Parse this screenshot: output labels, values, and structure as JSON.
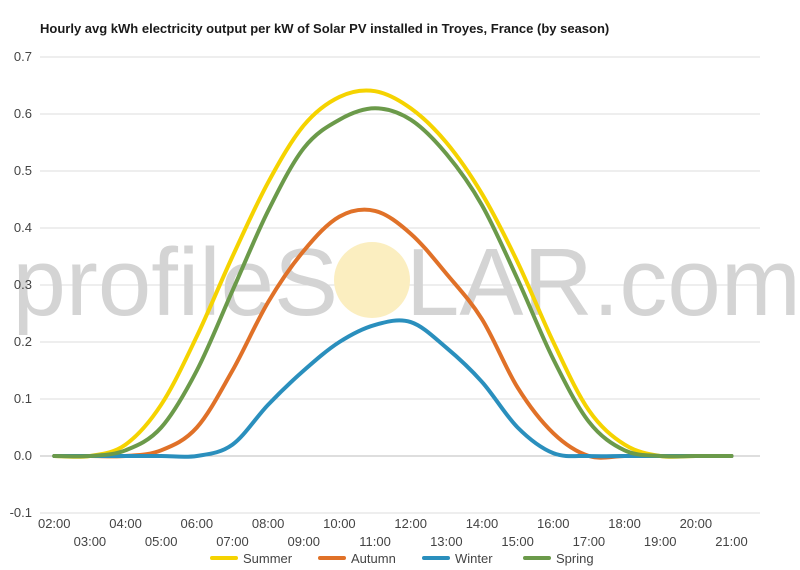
{
  "chart_data": {
    "type": "line",
    "title": "Hourly avg kWh electricity output per kW of Solar PV installed in Troyes, France (by season)",
    "xlabel": "",
    "ylabel": "",
    "ylim": [
      -0.1,
      0.7
    ],
    "yticks": [
      "0.7",
      "0.6",
      "0.5",
      "0.4",
      "0.3",
      "0.2",
      "0.1",
      "0.0",
      "-0.1"
    ],
    "ytick_values": [
      0.7,
      0.6,
      0.5,
      0.4,
      0.3,
      0.2,
      0.1,
      0.0,
      -0.1
    ],
    "xtick_labels": [
      "02:00",
      "03:00",
      "04:00",
      "05:00",
      "06:00",
      "07:00",
      "08:00",
      "09:00",
      "10:00",
      "11:00",
      "12:00",
      "13:00",
      "14:00",
      "15:00",
      "16:00",
      "17:00",
      "18:00",
      "19:00",
      "20:00",
      "21:00"
    ],
    "x": [
      2,
      3,
      4,
      5,
      6,
      7,
      8,
      9,
      10,
      11,
      12,
      13,
      14,
      15,
      16,
      17,
      18,
      19,
      20,
      21
    ],
    "grid": true,
    "legend_position": "bottom",
    "series": [
      {
        "name": "Summer",
        "color": "#f5d300",
        "values": [
          0.0,
          0.0,
          0.02,
          0.09,
          0.21,
          0.35,
          0.48,
          0.58,
          0.63,
          0.64,
          0.61,
          0.55,
          0.46,
          0.34,
          0.2,
          0.08,
          0.02,
          0.0,
          0.0,
          0.0
        ]
      },
      {
        "name": "Autumn",
        "color": "#e07128",
        "values": [
          0.0,
          0.0,
          0.0,
          0.01,
          0.05,
          0.15,
          0.27,
          0.36,
          0.42,
          0.43,
          0.39,
          0.32,
          0.24,
          0.12,
          0.04,
          0.0,
          0.0,
          0.0,
          0.0,
          0.0
        ]
      },
      {
        "name": "Winter",
        "color": "#2a8fbd",
        "values": [
          0.0,
          0.0,
          0.0,
          0.0,
          0.0,
          0.02,
          0.09,
          0.15,
          0.2,
          0.23,
          0.235,
          0.19,
          0.13,
          0.05,
          0.005,
          0.0,
          0.0,
          0.0,
          0.0,
          0.0
        ]
      },
      {
        "name": "Spring",
        "color": "#6b9a4a",
        "values": [
          0.0,
          0.0,
          0.01,
          0.05,
          0.15,
          0.29,
          0.43,
          0.54,
          0.59,
          0.61,
          0.59,
          0.53,
          0.44,
          0.31,
          0.17,
          0.06,
          0.01,
          0.0,
          0.0,
          0.0
        ]
      }
    ]
  },
  "watermark": {
    "text_left": "profileS",
    "text_right": "LAR.com",
    "sun_color": "#fbeec0"
  }
}
